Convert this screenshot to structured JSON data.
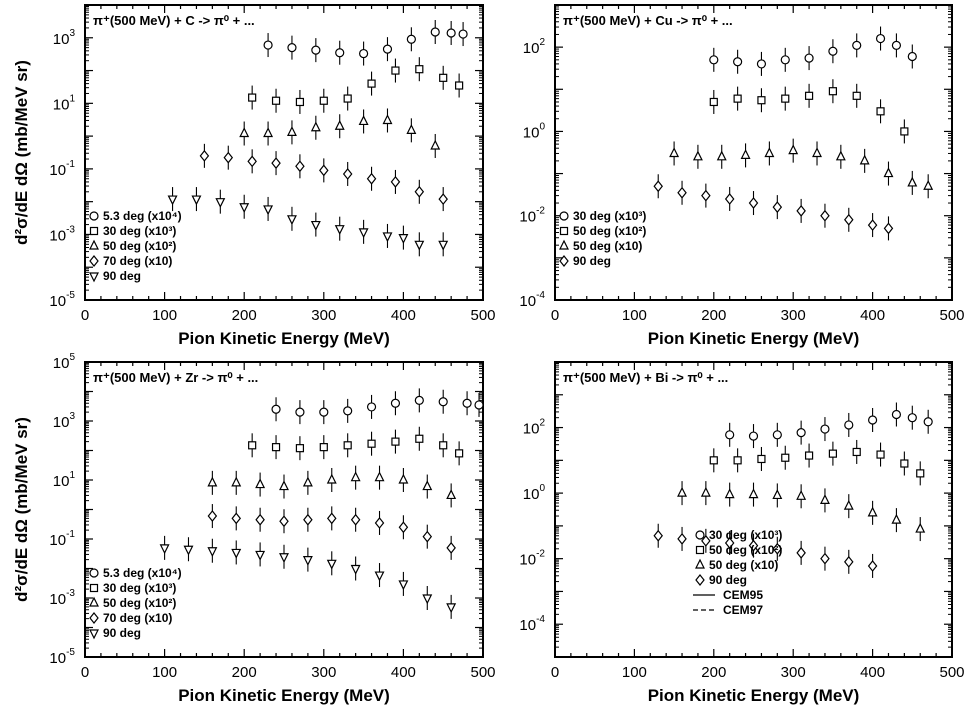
{
  "chart_data": [
    {
      "type": "scatter",
      "title": "π⁺(500 MeV) + C -> π⁰ + ...",
      "xlabel": "Pion Kinetic Energy (MeV)",
      "ylabel": "d²σ/dE dΩ (mb/MeV sr)",
      "xlim": [
        0,
        500
      ],
      "ylim": [
        1e-05,
        10000.0
      ],
      "yscale": "log",
      "xticks": [
        "0",
        "100",
        "200",
        "300",
        "400",
        "500"
      ],
      "ytick_mantissa": "10",
      "ytick_exponents": [
        "-5",
        "-3",
        "-1",
        "1",
        "3"
      ],
      "grid": false,
      "legend_position": "lower-left",
      "legend": [
        "5.3 deg (x10⁴)",
        "30 deg (x10³)",
        "50 deg (x10²)",
        "70 deg (x10)",
        "90 deg"
      ],
      "series": [
        {
          "name": "5.3 deg (x10⁴)",
          "marker": "circle",
          "x": [
            230,
            260,
            290,
            320,
            350,
            380,
            410,
            440,
            460,
            475
          ],
          "y": [
            600,
            500,
            420,
            350,
            330,
            450,
            900,
            1500,
            1400,
            1300
          ]
        },
        {
          "name": "30 deg (x10³)",
          "marker": "square",
          "x": [
            210,
            240,
            270,
            300,
            330,
            360,
            390,
            420,
            450,
            470
          ],
          "y": [
            15,
            12,
            11,
            12,
            14,
            40,
            100,
            110,
            60,
            35
          ]
        },
        {
          "name": "50 deg (x10²)",
          "marker": "triangle-up",
          "x": [
            200,
            230,
            260,
            290,
            320,
            350,
            380,
            410,
            440
          ],
          "y": [
            1.2,
            1.2,
            1.3,
            1.8,
            2.0,
            2.8,
            3.0,
            1.5,
            0.5
          ]
        },
        {
          "name": "70 deg (x10)",
          "marker": "diamond",
          "x": [
            150,
            180,
            210,
            240,
            270,
            300,
            330,
            360,
            390,
            420,
            450
          ],
          "y": [
            0.25,
            0.22,
            0.17,
            0.15,
            0.12,
            0.09,
            0.07,
            0.05,
            0.04,
            0.02,
            0.012
          ]
        },
        {
          "name": "90 deg",
          "marker": "triangle-down",
          "x": [
            110,
            140,
            170,
            200,
            230,
            260,
            290,
            320,
            350,
            380,
            400,
            420,
            450
          ],
          "y": [
            0.012,
            0.012,
            0.01,
            0.007,
            0.006,
            0.003,
            0.002,
            0.0015,
            0.0012,
            0.0009,
            0.0008,
            0.0005,
            0.0005
          ]
        }
      ]
    },
    {
      "type": "scatter",
      "title": "π⁺(500 MeV) + Cu -> π⁰ + ...",
      "xlabel": "Pion Kinetic Energy (MeV)",
      "ylabel": "",
      "xlim": [
        0,
        500
      ],
      "ylim": [
        0.0001,
        1000.0
      ],
      "yscale": "log",
      "xticks": [
        "0",
        "100",
        "200",
        "300",
        "400",
        "500"
      ],
      "ytick_mantissa": "10",
      "ytick_exponents": [
        "-4",
        "-2",
        "0",
        "2"
      ],
      "grid": false,
      "legend_position": "lower-left",
      "legend": [
        "30 deg (x10³)",
        "50 deg (x10²)",
        "50 deg (x10)",
        "90 deg"
      ],
      "series": [
        {
          "name": "30 deg (x10³)",
          "marker": "circle",
          "x": [
            200,
            230,
            260,
            290,
            320,
            350,
            380,
            410,
            430,
            450
          ],
          "y": [
            50,
            45,
            40,
            50,
            55,
            80,
            110,
            160,
            110,
            60
          ]
        },
        {
          "name": "50 deg (x10²)",
          "marker": "square",
          "x": [
            200,
            230,
            260,
            290,
            320,
            350,
            380,
            410,
            440
          ],
          "y": [
            5.0,
            6.0,
            5.5,
            6.0,
            7.0,
            9.0,
            7.0,
            3.0,
            1.0
          ]
        },
        {
          "name": "50 deg (x10)",
          "marker": "triangle-up",
          "x": [
            150,
            180,
            210,
            240,
            270,
            300,
            330,
            360,
            390,
            420,
            450,
            470
          ],
          "y": [
            0.3,
            0.25,
            0.25,
            0.27,
            0.3,
            0.35,
            0.3,
            0.25,
            0.2,
            0.1,
            0.06,
            0.05
          ]
        },
        {
          "name": "90 deg",
          "marker": "diamond",
          "x": [
            130,
            160,
            190,
            220,
            250,
            280,
            310,
            340,
            370,
            400,
            420
          ],
          "y": [
            0.05,
            0.035,
            0.03,
            0.025,
            0.02,
            0.016,
            0.013,
            0.01,
            0.008,
            0.006,
            0.005
          ]
        }
      ]
    },
    {
      "type": "scatter",
      "title": "π⁺(500 MeV) + Zr -> π⁰ + ...",
      "xlabel": "Pion Kinetic Energy (MeV)",
      "ylabel": "d²σ/dE dΩ (mb/MeV sr)",
      "xlim": [
        0,
        500
      ],
      "ylim": [
        1e-05,
        100000.0
      ],
      "yscale": "log",
      "xticks": [
        "0",
        "100",
        "200",
        "300",
        "400",
        "500"
      ],
      "ytick_mantissa": "10",
      "ytick_exponents": [
        "-5",
        "-3",
        "-1",
        "1",
        "3",
        "5"
      ],
      "grid": false,
      "legend_position": "lower-left",
      "legend": [
        "5.3 deg (x10⁴)",
        "30 deg (x10³)",
        "50 deg (x10²)",
        "70 deg (x10)",
        "90 deg"
      ],
      "series": [
        {
          "name": "5.3 deg (x10⁴)",
          "marker": "circle",
          "x": [
            240,
            270,
            300,
            330,
            360,
            390,
            420,
            450,
            480,
            495
          ],
          "y": [
            2500,
            2000,
            2000,
            2200,
            3000,
            4000,
            5000,
            4500,
            4000,
            3500
          ]
        },
        {
          "name": "30 deg (x10³)",
          "marker": "square",
          "x": [
            210,
            240,
            270,
            300,
            330,
            360,
            390,
            420,
            450,
            470
          ],
          "y": [
            150,
            130,
            120,
            130,
            150,
            170,
            200,
            250,
            150,
            80
          ]
        },
        {
          "name": "50 deg (x10²)",
          "marker": "triangle-up",
          "x": [
            160,
            190,
            220,
            250,
            280,
            310,
            340,
            370,
            400,
            430,
            460
          ],
          "y": [
            8,
            8,
            7,
            6,
            8,
            10,
            12,
            12,
            10,
            6,
            3
          ]
        },
        {
          "name": "70 deg (x10)",
          "marker": "diamond",
          "x": [
            160,
            190,
            220,
            250,
            280,
            310,
            340,
            370,
            400,
            430,
            460
          ],
          "y": [
            0.6,
            0.5,
            0.45,
            0.4,
            0.45,
            0.5,
            0.45,
            0.35,
            0.25,
            0.12,
            0.05
          ]
        },
        {
          "name": "90 deg",
          "marker": "triangle-down",
          "x": [
            100,
            130,
            160,
            190,
            220,
            250,
            280,
            310,
            340,
            370,
            400,
            430,
            460
          ],
          "y": [
            0.05,
            0.045,
            0.04,
            0.035,
            0.03,
            0.025,
            0.02,
            0.015,
            0.01,
            0.006,
            0.003,
            0.001,
            0.0005
          ]
        }
      ]
    },
    {
      "type": "scatter",
      "title": "π⁺(500 MeV) + Bi -> π⁰ + ...",
      "xlabel": "Pion Kinetic Energy (MeV)",
      "ylabel": "",
      "xlim": [
        0,
        500
      ],
      "ylim": [
        1e-05,
        10000.0
      ],
      "yscale": "log",
      "xticks": [
        "0",
        "100",
        "200",
        "300",
        "400",
        "500"
      ],
      "ytick_mantissa": "10",
      "ytick_exponents": [
        "-4",
        "-2",
        "0",
        "2"
      ],
      "grid": false,
      "legend_position": "lower-right",
      "legend": [
        "30 deg (x10³)",
        "50 deg (x10²)",
        "50 deg (x10)",
        "90 deg",
        "CEM95",
        "CEM97"
      ],
      "series": [
        {
          "name": "30 deg (x10³)",
          "marker": "circle",
          "x": [
            220,
            250,
            280,
            310,
            340,
            370,
            400,
            430,
            450,
            470
          ],
          "y": [
            60,
            55,
            60,
            70,
            90,
            120,
            170,
            250,
            200,
            150
          ]
        },
        {
          "name": "50 deg (x10²)",
          "marker": "square",
          "x": [
            200,
            230,
            260,
            290,
            320,
            350,
            380,
            410,
            440,
            460
          ],
          "y": [
            10,
            10,
            11,
            12,
            14,
            16,
            18,
            15,
            8,
            4
          ]
        },
        {
          "name": "50 deg (x10)",
          "marker": "triangle-up",
          "x": [
            160,
            190,
            220,
            250,
            280,
            310,
            340,
            370,
            400,
            430,
            460
          ],
          "y": [
            1.0,
            1.0,
            0.9,
            0.9,
            0.85,
            0.8,
            0.6,
            0.4,
            0.25,
            0.15,
            0.08
          ]
        },
        {
          "name": "90 deg",
          "marker": "diamond",
          "x": [
            130,
            160,
            190,
            220,
            250,
            280,
            310,
            340,
            370,
            400
          ],
          "y": [
            0.05,
            0.04,
            0.035,
            0.03,
            0.025,
            0.02,
            0.015,
            0.01,
            0.008,
            0.006
          ]
        }
      ]
    }
  ]
}
